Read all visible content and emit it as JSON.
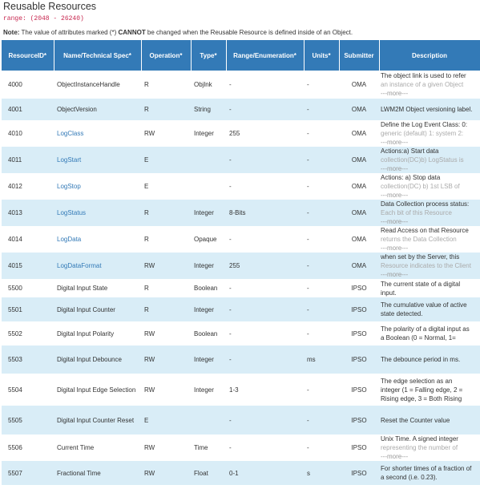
{
  "title": "Reusable Resources",
  "range": "range: (2048 - 26240)",
  "note": {
    "prefix": "Note:",
    "text_before": " The value of attributes marked (*) ",
    "emph": "CANNOT",
    "text_after": " be changed when the Reusable Resource is defined inside of an Object."
  },
  "headers": [
    "ResourceID*",
    "Name/Technical Spec*",
    "Operation*",
    "Type*",
    "Range/Enumeration*",
    "Units*",
    "Submitter",
    "Description"
  ],
  "more_label": "---more---",
  "rows": [
    {
      "id": "4000",
      "name": "ObjectInstanceHandle",
      "link": false,
      "op": "R",
      "type": "Objlnk",
      "range": "-",
      "units": "-",
      "sub": "OMA",
      "desc": [
        "The object link is used to refer",
        "an instance of a given Object"
      ],
      "more": true
    },
    {
      "id": "4001",
      "name": "ObjectVersion",
      "link": false,
      "op": "R",
      "type": "String",
      "range": "-",
      "units": "-",
      "sub": "OMA",
      "desc": [
        "LWM2M Object versioning label."
      ],
      "more": false
    },
    {
      "id": "4010",
      "name": "LogClass",
      "link": true,
      "op": "RW",
      "type": "Integer",
      "range": "255",
      "units": "-",
      "sub": "OMA",
      "desc": [
        "Define the Log Event Class: 0:",
        "generic (default) 1: system 2:"
      ],
      "more": true
    },
    {
      "id": "4011",
      "name": "LogStart",
      "link": true,
      "op": "E",
      "type": "",
      "range": "-",
      "units": "-",
      "sub": "OMA",
      "desc": [
        "Actions:a) Start data",
        "collection(DC)b) LogStatus is"
      ],
      "more": true
    },
    {
      "id": "4012",
      "name": "LogStop",
      "link": true,
      "op": "E",
      "type": "",
      "range": "-",
      "units": "-",
      "sub": "OMA",
      "desc": [
        "Actions: a) Stop data",
        "collection(DC) b) 1st LSB of"
      ],
      "more": true
    },
    {
      "id": "4013",
      "name": "LogStatus",
      "link": true,
      "op": "R",
      "type": "Integer",
      "range": "8-Bits",
      "units": "-",
      "sub": "OMA",
      "desc": [
        "Data Collection process status:",
        "Each bit of this Resource"
      ],
      "more": true
    },
    {
      "id": "4014",
      "name": "LogData",
      "link": true,
      "op": "R",
      "type": "Opaque",
      "range": "-",
      "units": "-",
      "sub": "OMA",
      "desc": [
        "Read Access on that Resource",
        "returns the Data Collection"
      ],
      "more": true
    },
    {
      "id": "4015",
      "name": "LogDataFormat",
      "link": true,
      "op": "RW",
      "type": "Integer",
      "range": "255",
      "units": "-",
      "sub": "OMA",
      "desc": [
        "when set by the Server, this",
        "Resource indicates to the Client"
      ],
      "more": true
    },
    {
      "id": "5500",
      "name": "Digital Input State",
      "link": false,
      "op": "R",
      "type": "Boolean",
      "range": "-",
      "units": "-",
      "sub": "IPSO",
      "desc": [
        "The current state of a digital",
        "input."
      ],
      "more": false
    },
    {
      "id": "5501",
      "name": "Digital Input Counter",
      "link": false,
      "op": "R",
      "type": "Integer",
      "range": "-",
      "units": "-",
      "sub": "IPSO",
      "desc": [
        "The cumulative value of active",
        "state detected."
      ],
      "more": false
    },
    {
      "id": "5502",
      "name": "Digital Input Polarity",
      "link": false,
      "op": "RW",
      "type": "Boolean",
      "range": "-",
      "units": "-",
      "sub": "IPSO",
      "desc": [
        "The polarity of a digital input as",
        "a Boolean (0 = Normal, 1="
      ],
      "more": false
    },
    {
      "id": "5503",
      "name": "Digital Input Debounce",
      "link": false,
      "op": "RW",
      "type": "Integer",
      "range": "-",
      "units": "ms",
      "sub": "IPSO",
      "desc": [
        "The debounce period in ms."
      ],
      "more": false
    },
    {
      "id": "5504",
      "name": "Digital Input Edge Selection",
      "link": false,
      "op": "RW",
      "type": "Integer",
      "range": "1-3",
      "units": "-",
      "sub": "IPSO",
      "desc": [
        "The edge selection as an",
        "integer (1 = Falling edge, 2 =",
        "Rising edge, 3 = Both Rising"
      ],
      "more": false
    },
    {
      "id": "5505",
      "name": "Digital Input Counter Reset",
      "link": false,
      "op": "E",
      "type": "",
      "range": "-",
      "units": "-",
      "sub": "IPSO",
      "desc": [
        "Reset the Counter value"
      ],
      "more": false
    },
    {
      "id": "5506",
      "name": "Current Time",
      "link": false,
      "op": "RW",
      "type": "Time",
      "range": "-",
      "units": "-",
      "sub": "IPSO",
      "desc": [
        "Unix Time. A signed integer",
        "representing the number of"
      ],
      "more": true
    },
    {
      "id": "5507",
      "name": "Fractional Time",
      "link": false,
      "op": "RW",
      "type": "Float",
      "range": "0-1",
      "units": "s",
      "sub": "IPSO",
      "desc": [
        "For shorter times of a fraction of",
        "a second (i.e. 0.23)."
      ],
      "more": false
    }
  ]
}
